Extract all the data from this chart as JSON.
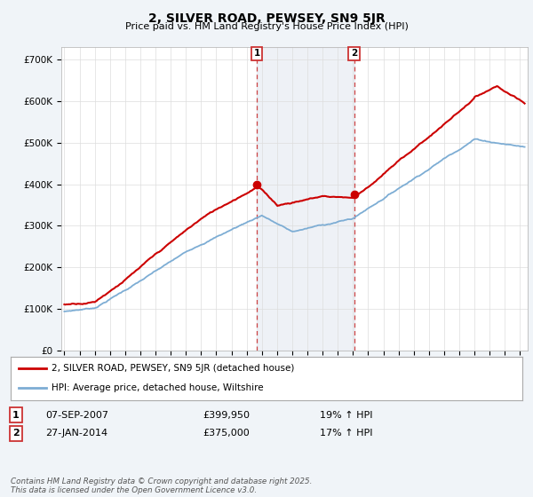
{
  "title": "2, SILVER ROAD, PEWSEY, SN9 5JR",
  "subtitle": "Price paid vs. HM Land Registry's House Price Index (HPI)",
  "ylabel_ticks": [
    "£0",
    "£100K",
    "£200K",
    "£300K",
    "£400K",
    "£500K",
    "£600K",
    "£700K"
  ],
  "ytick_vals": [
    0,
    100000,
    200000,
    300000,
    400000,
    500000,
    600000,
    700000
  ],
  "ylim": [
    0,
    730000
  ],
  "xlim_start": 1994.8,
  "xlim_end": 2025.5,
  "red_color": "#cc0000",
  "blue_color": "#7dadd4",
  "shaded_region1": [
    2007.68,
    2014.08
  ],
  "marker1_x": 2007.68,
  "marker1_y": 399950,
  "marker2_x": 2014.08,
  "marker2_y": 375000,
  "legend_label1": "2, SILVER ROAD, PEWSEY, SN9 5JR (detached house)",
  "legend_label2": "HPI: Average price, detached house, Wiltshire",
  "note1_num": "1",
  "note1_date": "07-SEP-2007",
  "note1_price": "£399,950",
  "note1_hpi": "19% ↑ HPI",
  "note2_num": "2",
  "note2_date": "27-JAN-2014",
  "note2_price": "£375,000",
  "note2_hpi": "17% ↑ HPI",
  "footer": "Contains HM Land Registry data © Crown copyright and database right 2025.\nThis data is licensed under the Open Government Licence v3.0.",
  "background_color": "#f0f4f8",
  "plot_background": "#ffffff",
  "grid_color": "#dddddd"
}
